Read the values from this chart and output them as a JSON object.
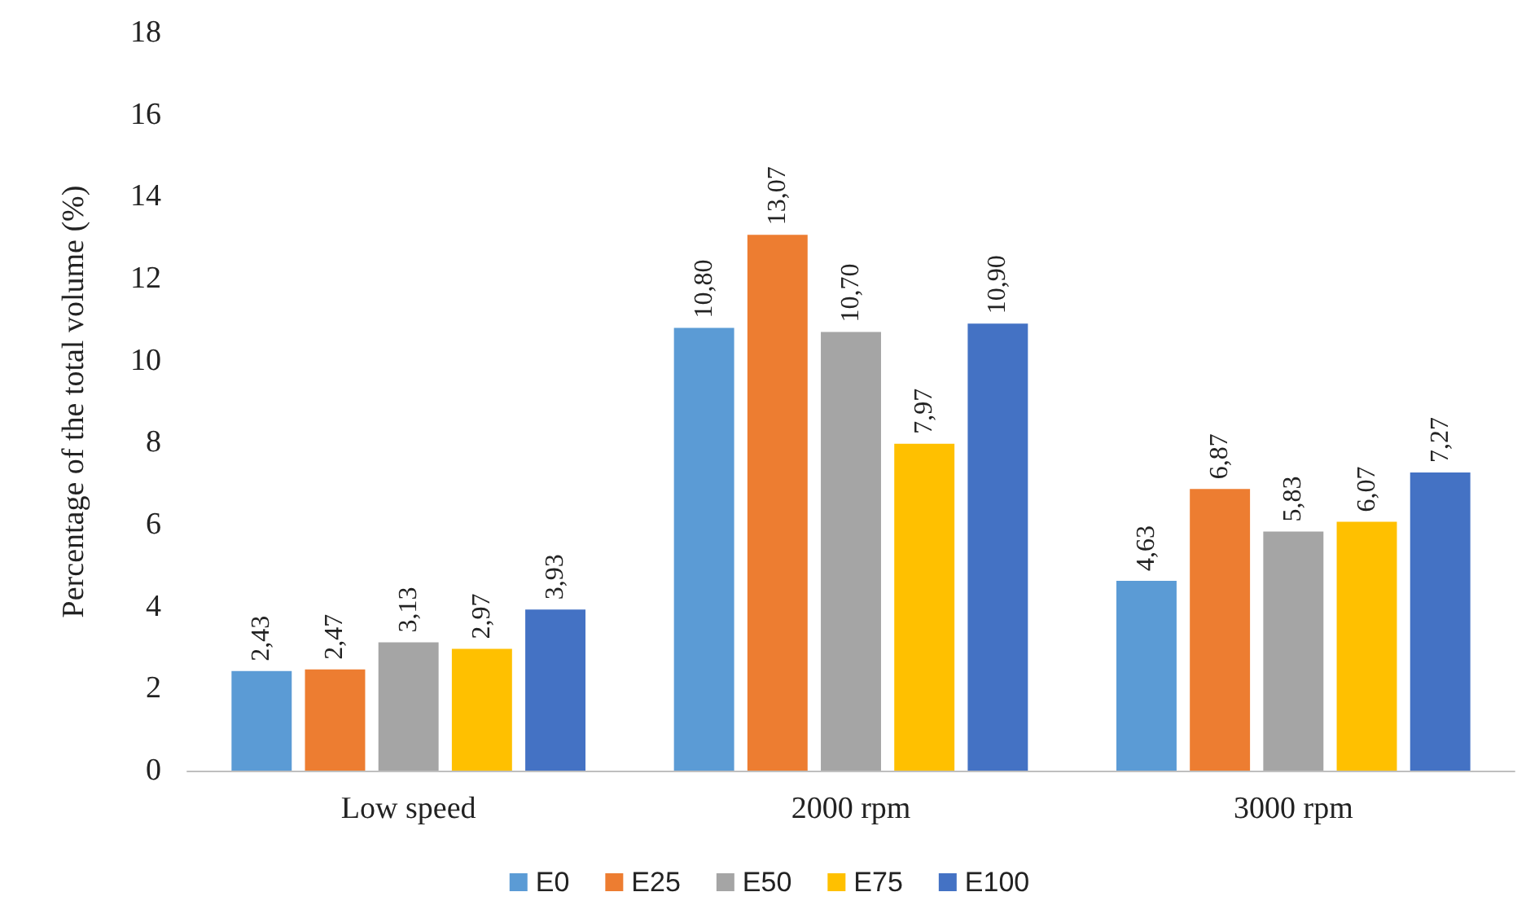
{
  "chart_data": {
    "type": "bar",
    "ylabel": "Percentage of the total volume (%)",
    "categories": [
      "Low speed",
      "2000 rpm",
      "3000 rpm"
    ],
    "series": [
      {
        "name": "E0",
        "color": "#5b9bd5",
        "values": [
          2.43,
          10.8,
          4.63
        ],
        "value_labels": [
          "2,43",
          "10,80",
          "4,63"
        ]
      },
      {
        "name": "E25",
        "color": "#ed7d31",
        "values": [
          2.47,
          13.07,
          6.87
        ],
        "value_labels": [
          "2,47",
          "13,07",
          "6,87"
        ]
      },
      {
        "name": "E50",
        "color": "#a5a5a5",
        "values": [
          3.13,
          10.7,
          5.83
        ],
        "value_labels": [
          "3,13",
          "10,70",
          "5,83"
        ]
      },
      {
        "name": "E75",
        "color": "#ffc000",
        "values": [
          2.97,
          7.97,
          6.07
        ],
        "value_labels": [
          "2,97",
          "7,97",
          "6,07"
        ]
      },
      {
        "name": "E100",
        "color": "#4472c4",
        "values": [
          3.93,
          10.9,
          7.27
        ],
        "value_labels": [
          "3,93",
          "10,90",
          "7,27"
        ]
      }
    ],
    "ylim": [
      0,
      18
    ],
    "yticks": [
      0,
      2,
      4,
      6,
      8,
      10,
      12,
      14,
      16,
      18
    ],
    "grid": false,
    "legend": "bottom"
  }
}
